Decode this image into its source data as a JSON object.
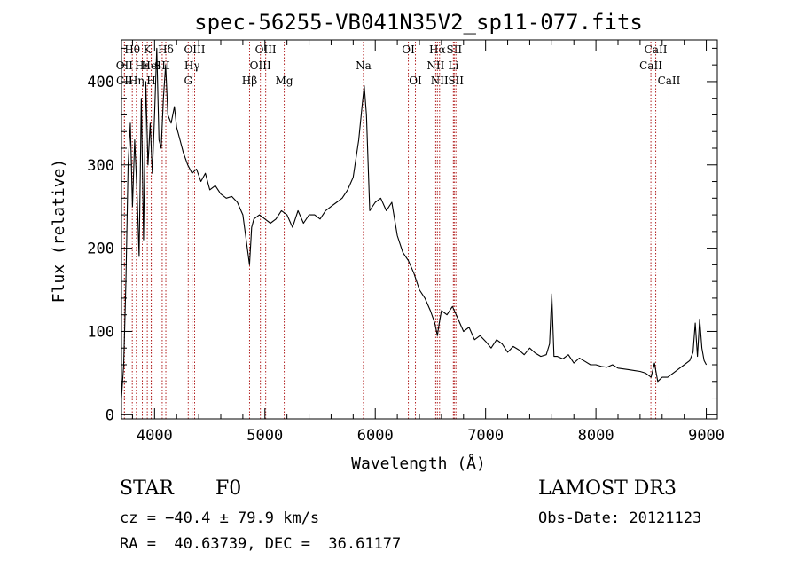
{
  "chart_data": {
    "type": "line",
    "title": "spec-56255-VB041N35V2_sp11-077.fits",
    "xlabel": "Wavelength (Å)",
    "ylabel": "Flux (relative)",
    "xlim": [
      3700,
      9100
    ],
    "ylim": [
      -5,
      450
    ],
    "xticks": [
      4000,
      5000,
      6000,
      7000,
      8000,
      9000
    ],
    "yticks": [
      0,
      100,
      200,
      300,
      400
    ],
    "series": [
      {
        "name": "spectrum",
        "x": [
          3700,
          3720,
          3740,
          3760,
          3780,
          3800,
          3820,
          3840,
          3860,
          3880,
          3900,
          3920,
          3940,
          3960,
          3980,
          4000,
          4020,
          4040,
          4060,
          4080,
          4100,
          4120,
          4150,
          4180,
          4200,
          4230,
          4260,
          4300,
          4340,
          4380,
          4420,
          4460,
          4500,
          4550,
          4600,
          4650,
          4700,
          4750,
          4800,
          4840,
          4860,
          4880,
          4900,
          4950,
          5000,
          5050,
          5100,
          5150,
          5200,
          5250,
          5300,
          5350,
          5400,
          5450,
          5500,
          5550,
          5600,
          5650,
          5700,
          5750,
          5800,
          5850,
          5880,
          5900,
          5920,
          5950,
          6000,
          6050,
          6100,
          6150,
          6200,
          6250,
          6300,
          6350,
          6400,
          6450,
          6500,
          6540,
          6563,
          6580,
          6600,
          6650,
          6700,
          6750,
          6800,
          6850,
          6900,
          6950,
          7000,
          7050,
          7100,
          7150,
          7200,
          7250,
          7300,
          7350,
          7400,
          7450,
          7500,
          7550,
          7580,
          7600,
          7620,
          7650,
          7700,
          7750,
          7800,
          7850,
          7900,
          7950,
          8000,
          8050,
          8100,
          8150,
          8200,
          8250,
          8300,
          8350,
          8400,
          8450,
          8500,
          8530,
          8560,
          8600,
          8650,
          8700,
          8750,
          8800,
          8850,
          8880,
          8900,
          8920,
          8940,
          8960,
          8980,
          9000
        ],
        "y": [
          20,
          60,
          160,
          300,
          350,
          250,
          330,
          270,
          190,
          380,
          210,
          400,
          300,
          350,
          290,
          360,
          440,
          330,
          320,
          380,
          420,
          360,
          350,
          370,
          345,
          330,
          315,
          300,
          290,
          295,
          280,
          290,
          270,
          275,
          265,
          260,
          262,
          255,
          240,
          200,
          180,
          225,
          235,
          240,
          235,
          230,
          235,
          245,
          240,
          225,
          245,
          230,
          240,
          240,
          235,
          245,
          250,
          255,
          260,
          270,
          285,
          330,
          370,
          395,
          360,
          245,
          255,
          260,
          245,
          255,
          215,
          195,
          185,
          170,
          150,
          140,
          125,
          110,
          95,
          110,
          125,
          120,
          130,
          115,
          100,
          105,
          90,
          95,
          88,
          80,
          90,
          85,
          75,
          82,
          78,
          72,
          80,
          74,
          70,
          72,
          85,
          145,
          70,
          70,
          67,
          72,
          62,
          68,
          64,
          60,
          60,
          58,
          57,
          60,
          56,
          55,
          54,
          53,
          52,
          50,
          45,
          62,
          40,
          45,
          45,
          50,
          55,
          60,
          65,
          75,
          110,
          70,
          115,
          80,
          65,
          60
        ]
      }
    ],
    "lines": [
      {
        "label": "Hθ",
        "wl": 3798,
        "row": 1
      },
      {
        "label": "K",
        "wl": 3934,
        "row": 1
      },
      {
        "label": "Hδ",
        "wl": 4102,
        "row": 1
      },
      {
        "label": "OII",
        "wl": 3727,
        "row": 2
      },
      {
        "label": "Hε",
        "wl": 3889,
        "row": 2
      },
      {
        "label": "HeI",
        "wl": 3970,
        "row": 2
      },
      {
        "label": "SII",
        "wl": 4069,
        "row": 2
      },
      {
        "label": "CII",
        "wl": 3727,
        "row": 3
      },
      {
        "label": "Hη",
        "wl": 3835,
        "row": 3
      },
      {
        "label": "H",
        "wl": 3969,
        "row": 3
      },
      {
        "label": "OIII",
        "wl": 4363,
        "row": 1
      },
      {
        "label": "Hγ",
        "wl": 4340,
        "row": 2
      },
      {
        "label": "G",
        "wl": 4305,
        "row": 3
      },
      {
        "label": "OIII",
        "wl": 5007,
        "row": 1
      },
      {
        "label": "OIII",
        "wl": 4959,
        "row": 2
      },
      {
        "label": "Hβ",
        "wl": 4861,
        "row": 3
      },
      {
        "label": "Mg",
        "wl": 5175,
        "row": 3
      },
      {
        "label": "Na",
        "wl": 5893,
        "row": 2
      },
      {
        "label": "OI",
        "wl": 6300,
        "row": 1
      },
      {
        "label": "OI",
        "wl": 6364,
        "row": 3
      },
      {
        "label": "Hα",
        "wl": 6563,
        "row": 1
      },
      {
        "label": "SII",
        "wl": 6716,
        "row": 1
      },
      {
        "label": "NII",
        "wl": 6548,
        "row": 2
      },
      {
        "label": "Li",
        "wl": 6708,
        "row": 2
      },
      {
        "label": "NII",
        "wl": 6583,
        "row": 3
      },
      {
        "label": "SII",
        "wl": 6731,
        "row": 3
      },
      {
        "label": "CaII",
        "wl": 8542,
        "row": 1
      },
      {
        "label": "CaII",
        "wl": 8498,
        "row": 2
      },
      {
        "label": "CaII",
        "wl": 8662,
        "row": 3
      }
    ],
    "line_color": "#b22222"
  },
  "info": {
    "object_class": "STAR",
    "subclass": "F0",
    "survey": "LAMOST DR3",
    "redshift": "cz = −40.4 ± 79.9 km/s",
    "obs_date": "Obs-Date: 20121123",
    "coords": "RA =  40.63739, DEC =  36.61177"
  }
}
